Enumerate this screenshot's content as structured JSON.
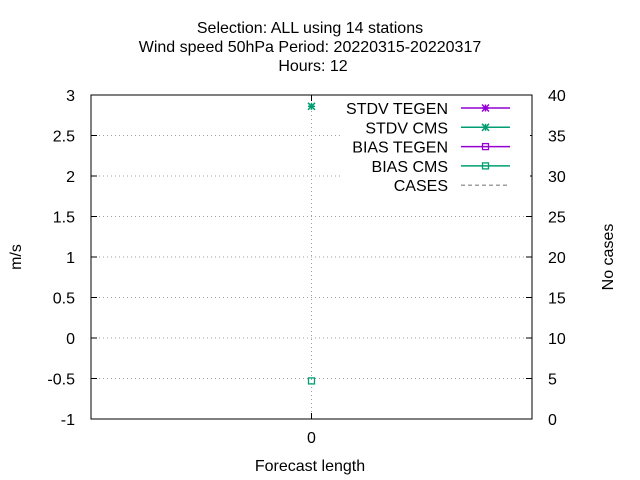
{
  "title_lines": [
    "Selection: ALL using    14 stations",
    "Wind speed 50hPa   Period: 20220315-20220317",
    "Hours:  12"
  ],
  "chart_data": {
    "type": "line",
    "xlabel": "Forecast length",
    "ylabel": "m/s",
    "y2label": "No cases",
    "x": [
      0
    ],
    "xticks": [
      "0"
    ],
    "xlim": [
      -1,
      1
    ],
    "ylim": [
      -1,
      3
    ],
    "y2lim": [
      0,
      40
    ],
    "yticks": [
      "3",
      "2.5",
      "2",
      "1.5",
      "1",
      "0.5",
      "0",
      "-0.5",
      "-1"
    ],
    "y2ticks": [
      "40",
      "35",
      "30",
      "25",
      "20",
      "15",
      "10",
      "5",
      "0"
    ],
    "grid": true,
    "legend_position": "top-right",
    "series": [
      {
        "name": "STDV TEGEN",
        "color": "#9400d3",
        "marker": "x-star",
        "axis": "left",
        "values": [
          null
        ]
      },
      {
        "name": "STDV CMS",
        "color": "#009e73",
        "marker": "x-star",
        "axis": "left",
        "values": [
          2.86
        ]
      },
      {
        "name": "BIAS TEGEN",
        "color": "#9400d3",
        "marker": "square",
        "axis": "left",
        "values": [
          null
        ]
      },
      {
        "name": "BIAS CMS",
        "color": "#009e73",
        "marker": "square",
        "axis": "left",
        "values": [
          -0.53
        ]
      },
      {
        "name": "CASES",
        "color": "#808080",
        "marker": "none",
        "dashed": true,
        "axis": "right",
        "values": [
          null
        ]
      }
    ]
  }
}
